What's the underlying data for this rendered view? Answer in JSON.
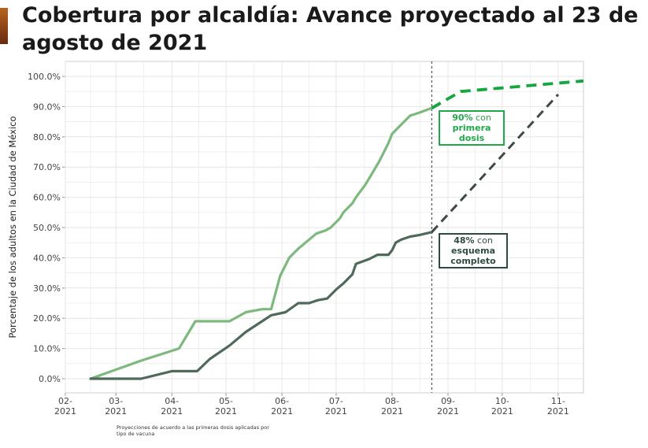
{
  "title": "Cobertura por alcaldía: Avance proyectado al 23 de agosto de 2021",
  "footnote": "Proyecciones de acuerdo a las primeras dosis aplicadas por tipo de vacuna",
  "colors": {
    "first_dose": "#7db87d",
    "full_scheme": "#4f6a5a",
    "projection_first": "#16a63f",
    "projection_full": "#3e4a44",
    "grid": "#e6e6e6"
  },
  "annotations": {
    "first": {
      "pct": "90%",
      "suffix": " con",
      "line2": "primera",
      "line3": "dosis"
    },
    "full": {
      "pct": "48%",
      "suffix": " con",
      "line2": "esquema",
      "line3": "completo"
    }
  },
  "chart_data": {
    "type": "line",
    "title": "Cobertura por alcaldía: Avance proyectado al 23 de agosto de 2021",
    "xlabel": "",
    "ylabel": "Porcentaje de los adultos en la Ciudad de México",
    "x_ticks": [
      "02-2021",
      "03-2021",
      "04-2021",
      "05-2021",
      "06-2021",
      "07-2021",
      "08-2021",
      "09-2021",
      "10-2021",
      "11-2021"
    ],
    "y_ticks": [
      "0.0%",
      "10.0%",
      "20.0%",
      "30.0%",
      "40.0%",
      "50.0%",
      "60.0%",
      "70.0%",
      "80.0%",
      "90.0%",
      "100.0%"
    ],
    "xlim": [
      "2021-02-01",
      "2021-11-15"
    ],
    "ylim": [
      0,
      100
    ],
    "grid": true,
    "cutoff_date": "2021-08-23",
    "series": [
      {
        "key": "first_dose",
        "style": "solid",
        "x": [
          "2021-02-15",
          "2021-03-15",
          "2021-04-05",
          "2021-04-14",
          "2021-05-03",
          "2021-05-12",
          "2021-05-21",
          "2021-05-26",
          "2021-05-31",
          "2021-06-05",
          "2021-06-10",
          "2021-06-20",
          "2021-06-25",
          "2021-06-28",
          "2021-07-03",
          "2021-07-05",
          "2021-07-10",
          "2021-07-12",
          "2021-07-17",
          "2021-07-21",
          "2021-07-25",
          "2021-07-30",
          "2021-08-01",
          "2021-08-06",
          "2021-08-11",
          "2021-08-16",
          "2021-08-23"
        ],
        "y": [
          0,
          6,
          10,
          19,
          19,
          22,
          23,
          23,
          34,
          40,
          43,
          48,
          49,
          50,
          53,
          55,
          58,
          60,
          64,
          68,
          72,
          78,
          81,
          84,
          87,
          88,
          89.5
        ]
      },
      {
        "key": "full_scheme",
        "style": "solid",
        "x": [
          "2021-02-15",
          "2021-03-15",
          "2021-04-01",
          "2021-04-15",
          "2021-04-22",
          "2021-05-03",
          "2021-05-12",
          "2021-05-21",
          "2021-05-26",
          "2021-06-03",
          "2021-06-10",
          "2021-06-16",
          "2021-06-21",
          "2021-06-26",
          "2021-07-01",
          "2021-07-05",
          "2021-07-10",
          "2021-07-12",
          "2021-07-19",
          "2021-07-24",
          "2021-07-30",
          "2021-08-01",
          "2021-08-03",
          "2021-08-06",
          "2021-08-11",
          "2021-08-16",
          "2021-08-23"
        ],
        "y": [
          0,
          0,
          2.5,
          2.5,
          6.5,
          11,
          15.5,
          19,
          21,
          22,
          25,
          25,
          26,
          26.5,
          29.5,
          31.5,
          34.5,
          38,
          39.5,
          41,
          41,
          42.5,
          45,
          46,
          47,
          47.5,
          48.5
        ]
      },
      {
        "key": "first_dose_projection",
        "style": "dashed",
        "x": [
          "2021-08-23",
          "2021-09-08",
          "2021-11-15"
        ],
        "y": [
          89.5,
          95,
          98.5
        ]
      },
      {
        "key": "full_scheme_projection",
        "style": "dashed",
        "x": [
          "2021-08-23",
          "2021-11-01"
        ],
        "y": [
          48.5,
          94
        ]
      }
    ]
  }
}
